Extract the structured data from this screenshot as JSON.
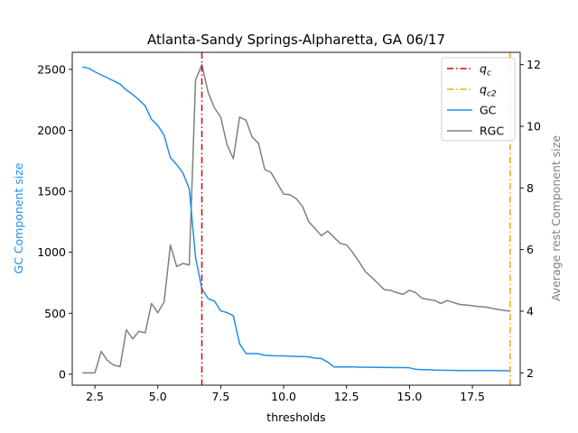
{
  "chart_data": {
    "type": "line",
    "title": "Atlanta-Sandy Springs-Alpharetta, GA 06/17",
    "xlabel": "thresholds",
    "ylabel_left": "GC Component size",
    "ylabel_right": "Average rest Component size",
    "xlim": [
      1.6,
      19.4
    ],
    "ylim_left": [
      -90,
      2640
    ],
    "ylim_right": [
      1.6,
      12.4
    ],
    "xticks": [
      2.5,
      5.0,
      7.5,
      10.0,
      12.5,
      15.0,
      17.5
    ],
    "xtick_labels": [
      "2.5",
      "5.0",
      "7.5",
      "10.0",
      "12.5",
      "15.0",
      "17.5"
    ],
    "yticks_left": [
      0,
      500,
      1000,
      1500,
      2000,
      2500
    ],
    "yticks_right": [
      2,
      4,
      6,
      8,
      10,
      12
    ],
    "grid": false,
    "legend_position": "upper-right",
    "colors": {
      "gc": "#1f8fe8",
      "rgc": "#808080",
      "qc": "#e00000",
      "qc2": "#ffa500",
      "left_axis_label": "#1f8fe8",
      "right_axis_label": "#808080"
    },
    "x": [
      2.0,
      2.25,
      2.5,
      2.75,
      3.0,
      3.25,
      3.5,
      3.75,
      4.0,
      4.25,
      4.5,
      4.75,
      5.0,
      5.25,
      5.5,
      5.75,
      6.0,
      6.25,
      6.5,
      6.75,
      7.0,
      7.25,
      7.5,
      7.75,
      8.0,
      8.25,
      8.5,
      8.75,
      9.0,
      9.25,
      9.5,
      9.75,
      10.0,
      10.25,
      10.5,
      10.75,
      11.0,
      11.25,
      11.5,
      11.75,
      12.0,
      12.25,
      12.5,
      12.75,
      13.0,
      13.25,
      13.5,
      13.75,
      14.0,
      14.25,
      14.5,
      14.75,
      15.0,
      15.25,
      15.5,
      15.75,
      16.0,
      16.25,
      16.5,
      16.75,
      17.0,
      17.25,
      17.5,
      17.75,
      18.0,
      18.25,
      18.5,
      18.75,
      19.0
    ],
    "series": [
      {
        "name": "GC",
        "axis": "left",
        "values": [
          2520,
          2510,
          2480,
          2455,
          2430,
          2405,
          2380,
          2330,
          2295,
          2250,
          2200,
          2090,
          2040,
          1960,
          1775,
          1720,
          1650,
          1520,
          960,
          700,
          620,
          600,
          520,
          505,
          480,
          250,
          170,
          170,
          168,
          155,
          152,
          150,
          150,
          148,
          146,
          145,
          142,
          132,
          128,
          100,
          60,
          60,
          60,
          60,
          58,
          57,
          57,
          56,
          55,
          55,
          54,
          54,
          53,
          40,
          38,
          38,
          34,
          33,
          32,
          31,
          30,
          30,
          30,
          30,
          30,
          30,
          29,
          29,
          28
        ]
      },
      {
        "name": "RGC",
        "axis": "right",
        "values": [
          2.0,
          2.0,
          2.0,
          2.7,
          2.4,
          2.25,
          2.2,
          3.4,
          3.1,
          3.35,
          3.3,
          4.25,
          3.95,
          4.3,
          6.15,
          5.45,
          5.55,
          5.5,
          11.5,
          12.0,
          11.1,
          10.6,
          10.3,
          9.4,
          8.95,
          10.3,
          10.2,
          9.65,
          9.45,
          8.6,
          8.5,
          8.15,
          7.8,
          7.78,
          7.65,
          7.4,
          6.9,
          6.68,
          6.45,
          6.6,
          6.4,
          6.2,
          6.15,
          5.9,
          5.6,
          5.28,
          5.1,
          4.9,
          4.7,
          4.68,
          4.6,
          4.55,
          4.68,
          4.6,
          4.42,
          4.38,
          4.35,
          4.25,
          4.35,
          4.28,
          4.22,
          4.2,
          4.18,
          4.15,
          4.14,
          4.1,
          4.06,
          4.03,
          4.0
        ]
      }
    ],
    "vlines": [
      {
        "name": "q_c",
        "x": 6.75,
        "style": "dashdot"
      },
      {
        "name": "q_c2",
        "x": 19.0,
        "style": "dashdot"
      }
    ],
    "legend": [
      {
        "key": "qc",
        "base": "q",
        "sub": "c"
      },
      {
        "key": "qc2",
        "base": "q",
        "sub": "c2"
      },
      {
        "key": "gc",
        "label": "GC"
      },
      {
        "key": "rgc",
        "label": "RGC"
      }
    ]
  }
}
